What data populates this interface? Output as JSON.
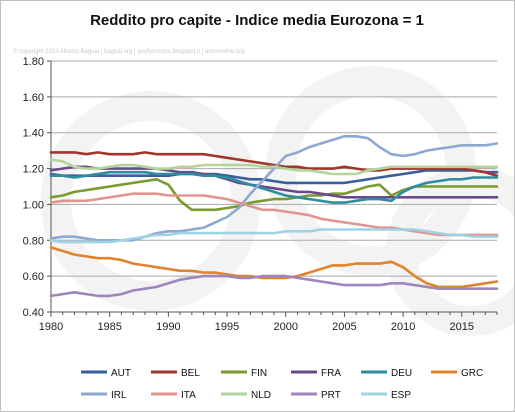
{
  "chart_data": {
    "type": "line",
    "title": "Reddito pro capite - Indice media Eurozona = 1",
    "credit": "© copyright 2013 Alberto Bagnai | bagnai.org | goofynomics.blogspot.it | asimmetrie.org",
    "xlabel": "",
    "ylabel": "",
    "xlim": [
      1980,
      2018
    ],
    "ylim": [
      0.4,
      1.8
    ],
    "x_ticks": [
      "1980",
      "1985",
      "1990",
      "1995",
      "2000",
      "2005",
      "2010",
      "2015"
    ],
    "y_ticks": [
      "0.40",
      "0.60",
      "0.80",
      "1.00",
      "1.20",
      "1.40",
      "1.60",
      "1.80"
    ],
    "grid": "horizontal",
    "legend": "bottom",
    "x": [
      1980,
      1981,
      1982,
      1983,
      1984,
      1985,
      1986,
      1987,
      1988,
      1989,
      1990,
      1991,
      1992,
      1993,
      1994,
      1995,
      1996,
      1997,
      1998,
      1999,
      2000,
      2001,
      2002,
      2003,
      2004,
      2005,
      2006,
      2007,
      2008,
      2009,
      2010,
      2011,
      2012,
      2013,
      2014,
      2015,
      2016,
      2017,
      2018
    ],
    "series": [
      {
        "name": "AUT",
        "color": "#3a5d9c",
        "values": [
          1.17,
          1.16,
          1.16,
          1.16,
          1.16,
          1.16,
          1.16,
          1.16,
          1.16,
          1.16,
          1.16,
          1.17,
          1.17,
          1.17,
          1.17,
          1.16,
          1.15,
          1.14,
          1.14,
          1.13,
          1.12,
          1.12,
          1.12,
          1.12,
          1.12,
          1.12,
          1.13,
          1.14,
          1.15,
          1.16,
          1.17,
          1.18,
          1.19,
          1.19,
          1.19,
          1.19,
          1.19,
          1.18,
          1.18
        ]
      },
      {
        "name": "BEL",
        "color": "#a0362c",
        "values": [
          1.29,
          1.29,
          1.29,
          1.28,
          1.29,
          1.28,
          1.28,
          1.28,
          1.29,
          1.28,
          1.28,
          1.28,
          1.28,
          1.28,
          1.27,
          1.26,
          1.25,
          1.24,
          1.23,
          1.22,
          1.21,
          1.21,
          1.2,
          1.2,
          1.2,
          1.21,
          1.2,
          1.19,
          1.19,
          1.2,
          1.2,
          1.2,
          1.2,
          1.2,
          1.2,
          1.2,
          1.19,
          1.18,
          1.16
        ]
      },
      {
        "name": "FIN",
        "color": "#7a9a32",
        "values": [
          1.04,
          1.05,
          1.07,
          1.08,
          1.09,
          1.1,
          1.11,
          1.12,
          1.13,
          1.14,
          1.11,
          1.02,
          0.97,
          0.97,
          0.97,
          0.98,
          0.99,
          1.01,
          1.02,
          1.03,
          1.03,
          1.04,
          1.05,
          1.05,
          1.06,
          1.06,
          1.08,
          1.1,
          1.11,
          1.05,
          1.08,
          1.1,
          1.1,
          1.1,
          1.1,
          1.1,
          1.1,
          1.1,
          1.1
        ]
      },
      {
        "name": "FRA",
        "color": "#6a4a8a",
        "values": [
          1.19,
          1.2,
          1.21,
          1.21,
          1.2,
          1.2,
          1.2,
          1.2,
          1.2,
          1.2,
          1.19,
          1.18,
          1.18,
          1.17,
          1.16,
          1.14,
          1.12,
          1.11,
          1.1,
          1.09,
          1.08,
          1.07,
          1.07,
          1.06,
          1.05,
          1.04,
          1.04,
          1.04,
          1.04,
          1.04,
          1.04,
          1.04,
          1.04,
          1.04,
          1.04,
          1.04,
          1.04,
          1.04,
          1.04
        ]
      },
      {
        "name": "DEU",
        "color": "#2e8da0",
        "values": [
          1.16,
          1.16,
          1.15,
          1.16,
          1.17,
          1.18,
          1.18,
          1.18,
          1.18,
          1.17,
          1.17,
          1.17,
          1.17,
          1.16,
          1.16,
          1.15,
          1.13,
          1.11,
          1.09,
          1.07,
          1.05,
          1.04,
          1.03,
          1.02,
          1.01,
          1.01,
          1.02,
          1.03,
          1.03,
          1.02,
          1.07,
          1.1,
          1.12,
          1.13,
          1.14,
          1.14,
          1.15,
          1.15,
          1.15
        ]
      },
      {
        "name": "GRC",
        "color": "#e0832b",
        "values": [
          0.76,
          0.74,
          0.72,
          0.71,
          0.7,
          0.7,
          0.69,
          0.67,
          0.66,
          0.65,
          0.64,
          0.63,
          0.63,
          0.62,
          0.62,
          0.61,
          0.6,
          0.6,
          0.59,
          0.59,
          0.59,
          0.6,
          0.62,
          0.64,
          0.66,
          0.66,
          0.67,
          0.67,
          0.67,
          0.68,
          0.65,
          0.6,
          0.56,
          0.54,
          0.54,
          0.54,
          0.55,
          0.56,
          0.57
        ]
      },
      {
        "name": "IRL",
        "color": "#8fa8d2",
        "values": [
          0.81,
          0.82,
          0.82,
          0.81,
          0.8,
          0.8,
          0.8,
          0.8,
          0.82,
          0.84,
          0.85,
          0.85,
          0.86,
          0.87,
          0.9,
          0.93,
          0.98,
          1.06,
          1.13,
          1.2,
          1.27,
          1.29,
          1.32,
          1.34,
          1.36,
          1.38,
          1.38,
          1.37,
          1.32,
          1.28,
          1.27,
          1.28,
          1.3,
          1.31,
          1.32,
          1.33,
          1.33,
          1.33,
          1.34
        ]
      },
      {
        "name": "ITA",
        "color": "#e29590",
        "values": [
          1.01,
          1.02,
          1.02,
          1.02,
          1.03,
          1.04,
          1.05,
          1.06,
          1.06,
          1.06,
          1.05,
          1.05,
          1.05,
          1.05,
          1.04,
          1.03,
          1.01,
          0.99,
          0.97,
          0.97,
          0.96,
          0.95,
          0.94,
          0.92,
          0.91,
          0.9,
          0.89,
          0.88,
          0.87,
          0.87,
          0.86,
          0.85,
          0.84,
          0.83,
          0.83,
          0.83,
          0.83,
          0.83,
          0.83
        ]
      },
      {
        "name": "NLD",
        "color": "#b5d49b",
        "values": [
          1.25,
          1.24,
          1.21,
          1.2,
          1.2,
          1.21,
          1.22,
          1.22,
          1.21,
          1.2,
          1.2,
          1.21,
          1.21,
          1.22,
          1.22,
          1.22,
          1.22,
          1.22,
          1.21,
          1.21,
          1.2,
          1.19,
          1.19,
          1.18,
          1.17,
          1.17,
          1.17,
          1.19,
          1.2,
          1.21,
          1.21,
          1.21,
          1.21,
          1.21,
          1.21,
          1.21,
          1.21,
          1.21,
          1.21
        ]
      },
      {
        "name": "PRT",
        "color": "#9d85bd",
        "values": [
          0.49,
          0.5,
          0.51,
          0.5,
          0.49,
          0.49,
          0.5,
          0.52,
          0.53,
          0.54,
          0.56,
          0.58,
          0.59,
          0.6,
          0.6,
          0.6,
          0.59,
          0.59,
          0.6,
          0.6,
          0.6,
          0.59,
          0.58,
          0.57,
          0.56,
          0.55,
          0.55,
          0.55,
          0.55,
          0.56,
          0.56,
          0.55,
          0.54,
          0.53,
          0.53,
          0.53,
          0.53,
          0.53,
          0.53
        ]
      },
      {
        "name": "ESP",
        "color": "#9fd2e3",
        "values": [
          0.8,
          0.79,
          0.79,
          0.79,
          0.79,
          0.79,
          0.8,
          0.81,
          0.82,
          0.83,
          0.83,
          0.84,
          0.84,
          0.84,
          0.84,
          0.84,
          0.84,
          0.84,
          0.84,
          0.84,
          0.85,
          0.85,
          0.85,
          0.86,
          0.86,
          0.86,
          0.86,
          0.86,
          0.86,
          0.86,
          0.86,
          0.86,
          0.85,
          0.84,
          0.83,
          0.83,
          0.82,
          0.82,
          0.82
        ]
      }
    ]
  }
}
